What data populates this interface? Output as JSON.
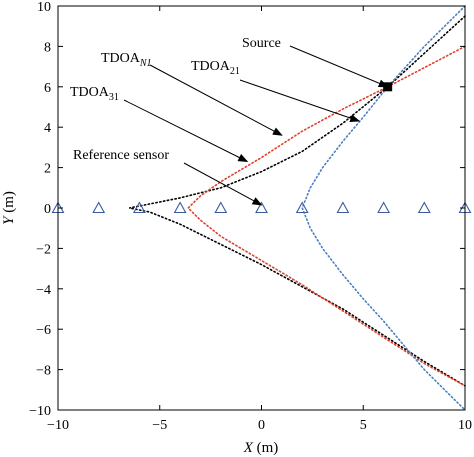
{
  "chart_data": {
    "type": "line",
    "title": "",
    "xlabel_var": "X",
    "xlabel_unit": " (m)",
    "ylabel_var": "Y",
    "ylabel_unit": " (m)",
    "xlim": [
      -10,
      10
    ],
    "ylim": [
      -10,
      10
    ],
    "xticks": [
      -10,
      -5,
      0,
      5,
      10
    ],
    "yticks": [
      -10,
      -8,
      -6,
      -4,
      -2,
      0,
      2,
      4,
      6,
      8,
      10
    ],
    "grid": false,
    "legend": "none",
    "source": {
      "x": 6.2,
      "y": 6.0,
      "label": "Source",
      "color": "#000000"
    },
    "sensors": {
      "x": [
        -10,
        -8,
        -6,
        -4,
        -2,
        0,
        2,
        4,
        6,
        8,
        10
      ],
      "y": 0,
      "color": "#3a5ba0",
      "marker": "triangle-open"
    },
    "reference_sensor": {
      "x": 0,
      "y": 0,
      "label": "Reference sensor"
    },
    "series": [
      {
        "key": "tdoaN1",
        "color": "#000000",
        "style": "dotted",
        "points": [
          [
            10,
            9.5
          ],
          [
            6.2,
            6.0
          ],
          [
            4,
            4.2
          ],
          [
            2,
            2.8
          ],
          [
            0,
            1.8
          ],
          [
            -2,
            1.0
          ],
          [
            -4,
            0.5
          ],
          [
            -5.5,
            0.2
          ],
          [
            -6.5,
            0.0
          ],
          [
            -5.5,
            -0.2
          ],
          [
            -4,
            -0.8
          ],
          [
            -2,
            -1.8
          ],
          [
            0,
            -2.8
          ],
          [
            2,
            -3.9
          ],
          [
            4,
            -5.0
          ],
          [
            6,
            -6.3
          ],
          [
            8,
            -7.6
          ],
          [
            10,
            -8.8
          ]
        ]
      },
      {
        "key": "tdoa31",
        "color": "#e0402a",
        "style": "dotted",
        "points": [
          [
            10,
            8.0
          ],
          [
            6.2,
            6.0
          ],
          [
            4,
            4.9
          ],
          [
            2,
            3.8
          ],
          [
            0,
            2.5
          ],
          [
            -2,
            1.3
          ],
          [
            -3,
            0.6
          ],
          [
            -3.6,
            0.0
          ],
          [
            -3,
            -0.6
          ],
          [
            -2,
            -1.4
          ],
          [
            0,
            -2.6
          ],
          [
            2,
            -3.8
          ],
          [
            4,
            -5.1
          ],
          [
            6,
            -6.4
          ],
          [
            8,
            -7.7
          ],
          [
            10,
            -8.8
          ]
        ]
      },
      {
        "key": "tdoa21",
        "color": "#4a7fc0",
        "style": "dotted",
        "points": [
          [
            10,
            10.0
          ],
          [
            8,
            8.0
          ],
          [
            6.2,
            6.0
          ],
          [
            5,
            4.5
          ],
          [
            4,
            3.3
          ],
          [
            3,
            2.0
          ],
          [
            2.4,
            1.0
          ],
          [
            2,
            0.0
          ],
          [
            2.4,
            -1.0
          ],
          [
            3,
            -2.0
          ],
          [
            4,
            -3.3
          ],
          [
            5,
            -4.5
          ],
          [
            6,
            -5.6
          ],
          [
            7,
            -6.8
          ],
          [
            8,
            -8.0
          ],
          [
            9,
            -9.0
          ],
          [
            10,
            -10.0
          ]
        ]
      }
    ],
    "annotations": [
      {
        "key": "source",
        "text": "Source",
        "sub": "",
        "target": [
          6.2,
          6.0
        ]
      },
      {
        "key": "tdoaN1",
        "text": "TDOA",
        "sub": "N1",
        "target": [
          1.0,
          3.6
        ]
      },
      {
        "key": "tdoa21",
        "text": "TDOA",
        "sub": "21",
        "target": [
          4.8,
          4.3
        ]
      },
      {
        "key": "tdoa31",
        "text": "TDOA",
        "sub": "31",
        "target": [
          -0.7,
          2.3
        ]
      },
      {
        "key": "reference",
        "text": "Reference sensor",
        "sub": "",
        "target": [
          0,
          0
        ]
      }
    ]
  }
}
